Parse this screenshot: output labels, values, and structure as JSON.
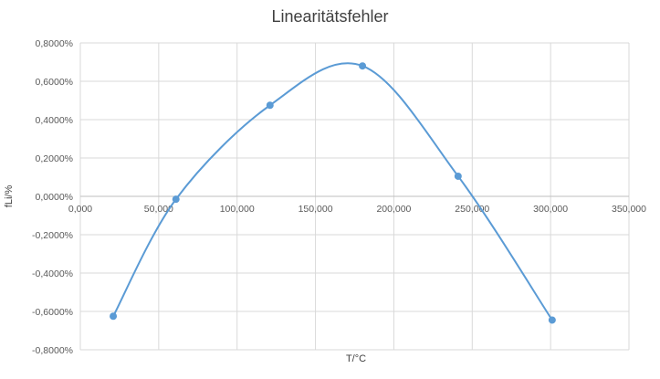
{
  "chart_data": {
    "type": "scatter",
    "title": "Linearitätsfehler",
    "xlabel": "T/°C",
    "ylabel": "fLi/%",
    "xlim": [
      0,
      350
    ],
    "ylim": [
      -0.8,
      0.8
    ],
    "x_ticks": [
      0,
      50,
      100,
      150,
      200,
      250,
      300,
      350
    ],
    "y_ticks": [
      -0.8,
      -0.6,
      -0.4,
      -0.2,
      0,
      0.2,
      0.4,
      0.6,
      0.8
    ],
    "x_tick_labels": [
      "0,000",
      "50,000",
      "100,000",
      "150,000",
      "200,000",
      "250,000",
      "300,000",
      "350,000"
    ],
    "y_tick_labels": [
      "-0,8000%",
      "-0,6000%",
      "-0,4000%",
      "-0,2000%",
      "0,0000%",
      "0,2000%",
      "0,4000%",
      "0,6000%",
      "0,8000%"
    ],
    "grid": true,
    "smooth_line": true,
    "series": [
      {
        "color": "#5B9BD5",
        "x": [
          21,
          61,
          121,
          180,
          241,
          301
        ],
        "y": [
          -0.625,
          -0.015,
          0.475,
          0.68,
          0.105,
          -0.645
        ]
      }
    ]
  }
}
